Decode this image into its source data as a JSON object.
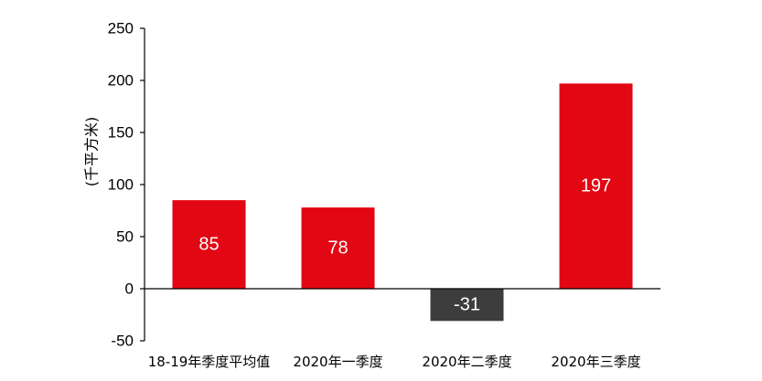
{
  "chart_data": {
    "type": "bar",
    "ylabel": "(千平方米)",
    "xlabel": "",
    "ylim": [
      -50,
      250
    ],
    "yticks": [
      250,
      200,
      150,
      100,
      50,
      0,
      -50
    ],
    "categories": [
      "18-19年季度平均值",
      "2020年一季度",
      "2020年二季度",
      "2020年三季度"
    ],
    "values": [
      85,
      78,
      -31,
      197
    ],
    "data_labels": [
      "85",
      "78",
      "-31",
      "197"
    ],
    "colors": {
      "positive": "#e30613",
      "negative": "#3d3d3d",
      "label_text": "#ffffff",
      "axis": "#000000"
    },
    "grid": false,
    "legend": "none"
  }
}
